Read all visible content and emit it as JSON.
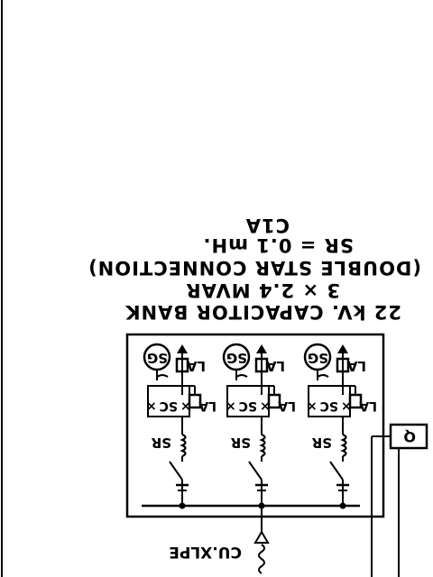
{
  "title": {
    "name": "C1A",
    "reactor": "SR = 0.1 mH.",
    "connection": "(DOUBLE STAR CONNECTION)",
    "rating": "3 × 2.4 MVAR",
    "bank": "22 kV. CAPACITOR BANK"
  },
  "phases": [
    {
      "sg": "SG",
      "la_top": "LA",
      "sc": "SC",
      "la_mid": "LA",
      "sr": "SR"
    },
    {
      "sg": "SG",
      "la_top": "LA",
      "sc": "SC",
      "la_mid": "LA",
      "sr": "SR"
    },
    {
      "sg": "SG",
      "la_top": "LA",
      "sc": "SC",
      "la_mid": "LA",
      "sr": "SR"
    }
  ],
  "cable": "CU.XLPE",
  "relay": "Q"
}
